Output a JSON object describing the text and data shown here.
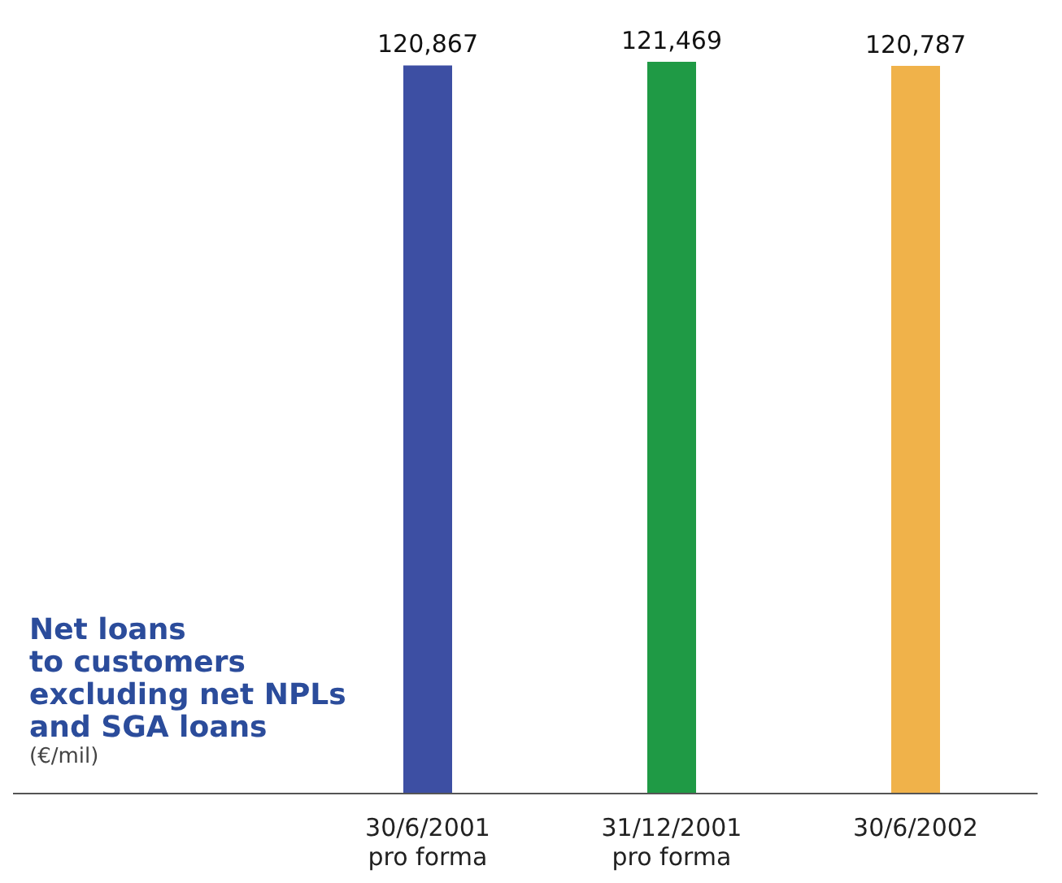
{
  "chart_data": {
    "type": "bar",
    "title": "Net loans\nto customers\nexcluding net NPLs\nand SGA loans",
    "annotations": [
      "(€/mil)"
    ],
    "categories": [
      "30/6/2001\npro forma",
      "31/12/2001\npro forma",
      "30/6/2002"
    ],
    "values": [
      120867,
      121469,
      120787
    ],
    "colors": [
      "#3d4fa3",
      "#1f9a45",
      "#f0b24a"
    ],
    "value_labels": [
      "120,867",
      "121,469",
      "120,787"
    ]
  }
}
